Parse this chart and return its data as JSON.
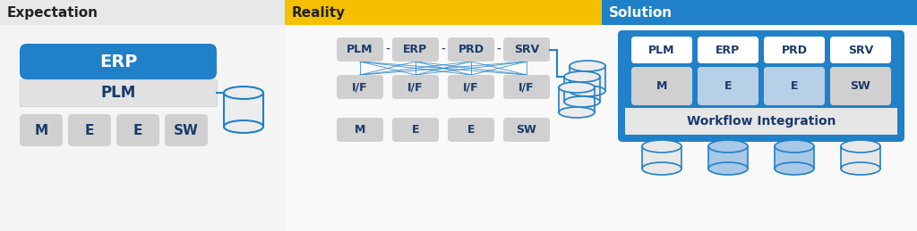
{
  "white": "#ffffff",
  "blue": "#2080c8",
  "yellow": "#f5c000",
  "light_gray": "#e8e8e8",
  "box_gray": "#d0d0d0",
  "text_blue": "#1a3a6a",
  "header_dark": "#1a1a1a",
  "section1_label": "Expectation",
  "section2_label": "Reality",
  "section3_label": "Solution",
  "erp_label": "ERP",
  "plm_label": "PLM",
  "wf_label": "Workflow Integration",
  "top_labels_r": [
    "PLM",
    "ERP",
    "PRD",
    "SRV"
  ],
  "if_labels": [
    "I/F",
    "I/F",
    "I/F",
    "I/F"
  ],
  "bot_labels": [
    "M",
    "E",
    "E",
    "SW"
  ],
  "top_labels_s": [
    "PLM",
    "ERP",
    "PRD",
    "SRV"
  ]
}
